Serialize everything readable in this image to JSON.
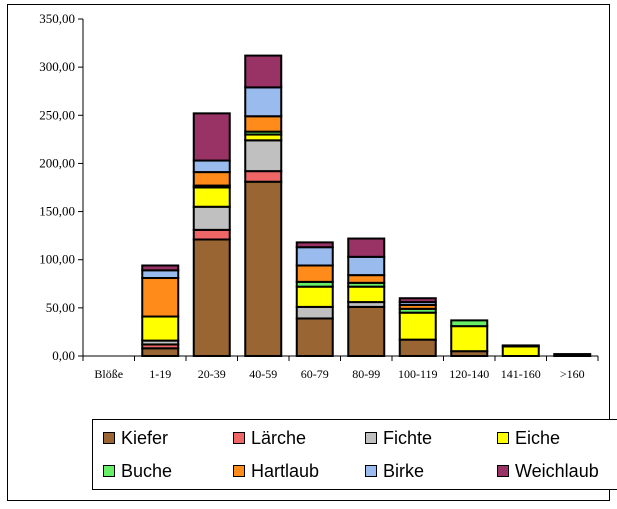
{
  "chart_data": {
    "type": "bar",
    "stacked": true,
    "categories": [
      "Blöße",
      "1-19",
      "20-39",
      "40-59",
      "60-79",
      "80-99",
      "100-119",
      "120-140",
      "141-160",
      ">160"
    ],
    "ylim": [
      0,
      350
    ],
    "yticks": [
      "0,00",
      "50,00",
      "100,00",
      "150,00",
      "200,00",
      "250,00",
      "300,00",
      "350,00"
    ],
    "series": [
      {
        "name": "Kiefer",
        "color": "#996633",
        "values": [
          0,
          8,
          121,
          181,
          39,
          51,
          17,
          5,
          0,
          0
        ]
      },
      {
        "name": "Lärche",
        "color": "#ee6666",
        "values": [
          0,
          4,
          10,
          11,
          0,
          0,
          0,
          0,
          0,
          0
        ]
      },
      {
        "name": "Fichte",
        "color": "#c0c0c0",
        "values": [
          0,
          4,
          24,
          32,
          12,
          5,
          0,
          0,
          0,
          0
        ]
      },
      {
        "name": "Eiche",
        "color": "#ffff00",
        "values": [
          0,
          25,
          20,
          6,
          21,
          16,
          28,
          26,
          10,
          2
        ]
      },
      {
        "name": "Buche",
        "color": "#66ee66",
        "values": [
          0,
          0,
          2,
          3,
          5,
          4,
          4,
          6,
          1,
          0
        ]
      },
      {
        "name": "Hartlaub",
        "color": "#ff8c1a",
        "values": [
          0,
          40,
          14,
          16,
          17,
          8,
          4,
          0,
          0,
          0
        ]
      },
      {
        "name": "Birke",
        "color": "#99bbee",
        "values": [
          0,
          8,
          12,
          30,
          19,
          19,
          3,
          0,
          0,
          0
        ]
      },
      {
        "name": "Weichlaub",
        "color": "#993366",
        "values": [
          0,
          5,
          49,
          33,
          5,
          19,
          4,
          0,
          0,
          0
        ]
      }
    ]
  }
}
